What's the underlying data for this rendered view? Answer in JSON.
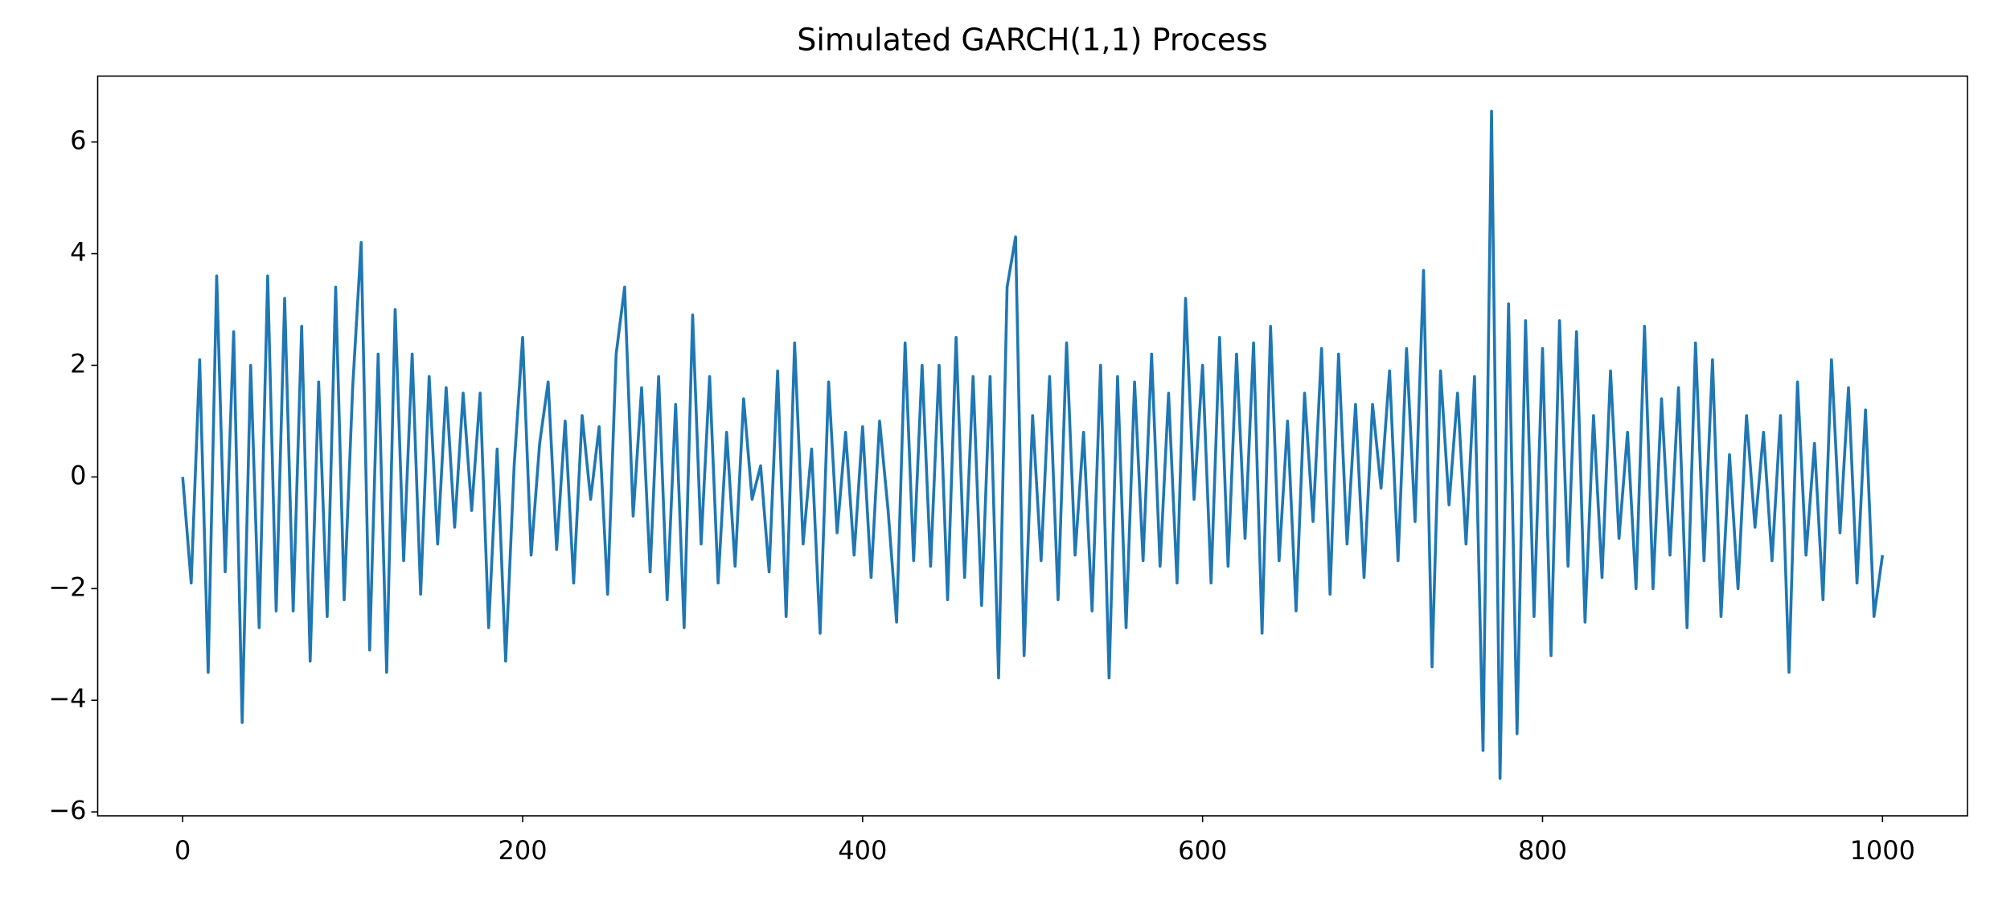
{
  "chart_data": {
    "type": "line",
    "title": "Simulated GARCH(1,1) Process",
    "color": "#1f77b4",
    "x": [
      0,
      5,
      10,
      15,
      20,
      25,
      30,
      35,
      40,
      45,
      50,
      55,
      60,
      65,
      70,
      75,
      80,
      85,
      90,
      95,
      100,
      105,
      110,
      115,
      120,
      125,
      130,
      135,
      140,
      145,
      150,
      155,
      160,
      165,
      170,
      175,
      180,
      185,
      190,
      195,
      200,
      205,
      210,
      215,
      220,
      225,
      230,
      235,
      240,
      245,
      250,
      255,
      260,
      265,
      270,
      275,
      280,
      285,
      290,
      295,
      300,
      305,
      310,
      315,
      320,
      325,
      330,
      335,
      340,
      345,
      350,
      355,
      360,
      365,
      370,
      375,
      380,
      385,
      390,
      395,
      400,
      405,
      410,
      415,
      420,
      425,
      430,
      435,
      440,
      445,
      450,
      455,
      460,
      465,
      470,
      475,
      480,
      485,
      490,
      495,
      500,
      505,
      510,
      515,
      520,
      525,
      530,
      535,
      540,
      545,
      550,
      555,
      560,
      565,
      570,
      575,
      580,
      585,
      590,
      595,
      600,
      605,
      610,
      615,
      620,
      625,
      630,
      635,
      640,
      645,
      650,
      655,
      660,
      665,
      670,
      675,
      680,
      685,
      690,
      695,
      700,
      705,
      710,
      715,
      720,
      725,
      730,
      735,
      740,
      745,
      750,
      755,
      760,
      765,
      770,
      775,
      780,
      785,
      790,
      795,
      800,
      805,
      810,
      815,
      820,
      825,
      830,
      835,
      840,
      845,
      850,
      855,
      860,
      865,
      870,
      875,
      880,
      885,
      890,
      895,
      900,
      905,
      910,
      915,
      920,
      925,
      930,
      935,
      940,
      945,
      950,
      955,
      960,
      965,
      970,
      975,
      980,
      985,
      990,
      995,
      1000
    ],
    "values": [
      0,
      -1.9,
      2.1,
      -3.5,
      3.6,
      -1.7,
      2.6,
      -4.4,
      2.0,
      -2.7,
      3.6,
      -2.4,
      3.2,
      -2.4,
      2.7,
      -3.3,
      1.7,
      -2.5,
      3.4,
      -2.2,
      1.6,
      4.2,
      -3.1,
      2.2,
      -3.5,
      3.0,
      -1.5,
      2.2,
      -2.1,
      1.8,
      -1.2,
      1.6,
      -0.9,
      1.5,
      -0.6,
      1.5,
      -2.7,
      0.5,
      -3.3,
      0.2,
      2.5,
      -1.4,
      0.6,
      1.7,
      -1.3,
      1.0,
      -1.9,
      1.1,
      -0.4,
      0.9,
      -2.1,
      2.2,
      3.4,
      -0.7,
      1.6,
      -1.7,
      1.8,
      -2.2,
      1.3,
      -2.7,
      2.9,
      -1.2,
      1.8,
      -1.9,
      0.8,
      -1.6,
      1.4,
      -0.4,
      0.2,
      -1.7,
      1.9,
      -2.5,
      2.4,
      -1.2,
      0.5,
      -2.8,
      1.7,
      -1.0,
      0.8,
      -1.4,
      0.9,
      -1.8,
      1.0,
      -0.6,
      -2.6,
      2.4,
      -1.5,
      2.0,
      -1.6,
      2.0,
      -2.2,
      2.5,
      -1.8,
      1.8,
      -2.3,
      1.8,
      -3.6,
      3.4,
      4.3,
      -3.2,
      1.1,
      -1.5,
      1.8,
      -2.2,
      2.4,
      -1.4,
      0.8,
      -2.4,
      2.0,
      -3.6,
      1.8,
      -2.7,
      1.7,
      -1.5,
      2.2,
      -1.6,
      1.5,
      -1.9,
      3.2,
      -0.4,
      2.0,
      -1.9,
      2.5,
      -1.6,
      2.2,
      -1.1,
      2.4,
      -2.8,
      2.7,
      -1.5,
      1.0,
      -2.4,
      1.5,
      -0.8,
      2.3,
      -2.1,
      2.2,
      -1.2,
      1.3,
      -1.8,
      1.3,
      -0.2,
      1.9,
      -1.5,
      2.3,
      -0.8,
      3.7,
      -3.4,
      1.9,
      -0.5,
      1.5,
      -1.2,
      1.8,
      -4.9,
      6.55,
      -5.4,
      3.1,
      -4.6,
      2.8,
      -2.5,
      2.3,
      -3.2,
      2.8,
      -1.6,
      2.6,
      -2.6,
      1.1,
      -1.8,
      1.9,
      -1.1,
      0.8,
      -2.0,
      2.7,
      -2.0,
      1.4,
      -1.4,
      1.6,
      -2.7,
      2.4,
      -1.5,
      2.1,
      -2.5,
      0.4,
      -2.0,
      1.1,
      -0.9,
      0.8,
      -1.5,
      1.1,
      -3.5,
      1.7,
      -1.4,
      0.6,
      -2.2,
      2.1,
      -1.0,
      1.6,
      -1.9,
      1.2,
      -2.5,
      -1.4
    ],
    "xlim": [
      -50,
      1050
    ],
    "ylim": [
      -6.07,
      7.18
    ],
    "xticks": [
      0,
      200,
      400,
      600,
      800,
      1000
    ],
    "yticks": [
      {
        "value": -6,
        "label": "−6"
      },
      {
        "value": -4,
        "label": "−4"
      },
      {
        "value": -2,
        "label": "−2"
      },
      0,
      2,
      4,
      6
    ]
  }
}
